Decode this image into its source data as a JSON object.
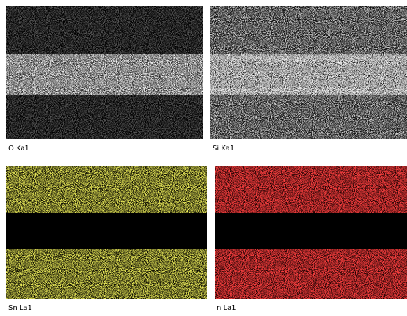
{
  "panels": [
    {
      "label": "O Ka1"
    },
    {
      "label": "Si Ka1"
    },
    {
      "label": "Sn La1"
    },
    {
      "label": "n La1"
    }
  ]
}
